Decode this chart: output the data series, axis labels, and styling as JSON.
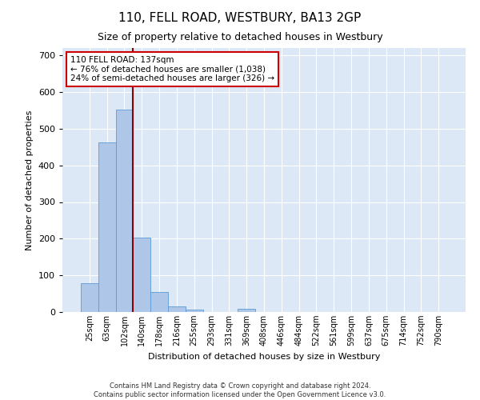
{
  "title": "110, FELL ROAD, WESTBURY, BA13 2GP",
  "subtitle": "Size of property relative to detached houses in Westbury",
  "xlabel": "Distribution of detached houses by size in Westbury",
  "ylabel": "Number of detached properties",
  "bar_labels": [
    "25sqm",
    "63sqm",
    "102sqm",
    "140sqm",
    "178sqm",
    "216sqm",
    "255sqm",
    "293sqm",
    "331sqm",
    "369sqm",
    "408sqm",
    "446sqm",
    "484sqm",
    "522sqm",
    "561sqm",
    "599sqm",
    "637sqm",
    "675sqm",
    "714sqm",
    "752sqm",
    "790sqm"
  ],
  "bar_values": [
    78,
    462,
    553,
    202,
    55,
    15,
    7,
    0,
    0,
    8,
    0,
    0,
    0,
    0,
    0,
    0,
    0,
    0,
    0,
    0,
    0
  ],
  "bar_color": "#aec6e8",
  "bar_edge_color": "#5b9bd5",
  "vline_color": "#8b0000",
  "annotation_text": "110 FELL ROAD: 137sqm\n← 76% of detached houses are smaller (1,038)\n24% of semi-detached houses are larger (326) →",
  "annotation_box_color": "#ffffff",
  "annotation_box_edge": "#cc0000",
  "ylim": [
    0,
    720
  ],
  "yticks": [
    0,
    100,
    200,
    300,
    400,
    500,
    600,
    700
  ],
  "background_color": "#dce8f5",
  "footer_line1": "Contains HM Land Registry data © Crown copyright and database right 2024.",
  "footer_line2": "Contains public sector information licensed under the Open Government Licence v3.0."
}
